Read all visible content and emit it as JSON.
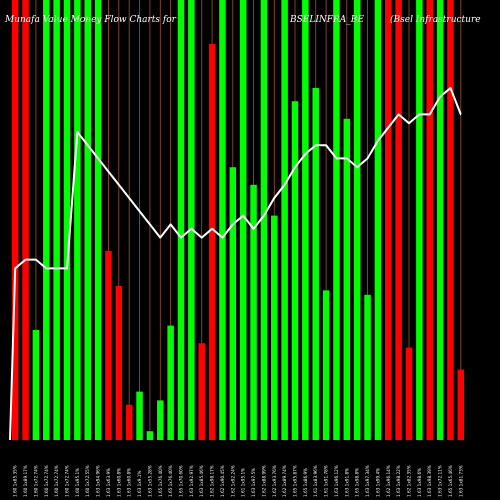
{
  "chart_data": {
    "type": "bar",
    "title_left": "Munafa Value Money Flow Charts for",
    "title_mid": "BSELINFRA_BE",
    "title_right": "(Bsel Infrastructure",
    "colors": {
      "up": "#00ff00",
      "down": "#ff0000",
      "line": "#ffffff",
      "grid": "#a0522d",
      "background": "#000000"
    },
    "ylim": [
      0,
      100
    ],
    "categories": [
      "1.60 1x85.35%",
      "1.60 1x89.17%",
      "1.60 1x72.74%",
      "1.60 1x72.74%",
      "1.60 1x72.74%",
      "1.60 1x72.74%",
      "1.60 1x95.1%",
      "1.60 1x72.55%",
      "1.63 1x94.96%",
      "1.63 1x63.9%",
      "1.63 1x60.8%",
      "1.63 1x60.8%",
      "1.63 1x9.1%",
      "1.63 1x55.28%",
      "1.65 1x76.40%",
      "1.65 1x76.40%",
      "1.65 1x70.60%",
      "1.63 1x92.97%",
      "1.63 1x85.46%",
      "1.62 1x98.17%",
      "1.62 1x90.45%",
      "1.62 1x92.24%",
      "1.61 1x95.1%",
      "1.63 1x97.5%",
      "1.62 1x88.99%",
      "1.62 1x93.76%",
      "1.62 1x89.74%",
      "1.65 1x95.87%",
      "1.65 1x86.9%",
      "1.61 1x83.96%",
      "1.61 1x91.78%",
      "1.63 1x96.12%",
      "1.63 1x91.8%",
      "1.65 1x98.8%",
      "1.63 1x97.34%",
      "1.63 1x99.4%",
      "1.62 1x96.14%",
      "1.63 1x98.22%",
      "1.62 1x82.35%",
      "1.63 1x98.6%",
      "1.63 1x98.39%",
      "1.63 1x72.11%",
      "1.65 1x65.46%",
      "1.63 1x81.73%"
    ],
    "series": [
      {
        "values": [
          100,
          100,
          25,
          100,
          100,
          100,
          100,
          100,
          100,
          43,
          35,
          8,
          11,
          2,
          9,
          26,
          100,
          100,
          22,
          90,
          100,
          62,
          100,
          58,
          100,
          51,
          100,
          77,
          100,
          80,
          34,
          100,
          73,
          100,
          33,
          100,
          100,
          100,
          21,
          100,
          100,
          100,
          100,
          16
        ],
        "directions": [
          "down",
          "down",
          "up",
          "up",
          "up",
          "up",
          "up",
          "up",
          "up",
          "down",
          "down",
          "down",
          "up",
          "up",
          "up",
          "up",
          "up",
          "up",
          "down",
          "down",
          "up",
          "up",
          "up",
          "up",
          "up",
          "up",
          "up",
          "up",
          "up",
          "up",
          "up",
          "up",
          "up",
          "up",
          "up",
          "up",
          "down",
          "down",
          "down",
          "up",
          "down",
          "up",
          "down",
          "down"
        ]
      }
    ],
    "line": [
      39,
      41,
      41,
      39,
      39,
      39,
      70,
      67,
      64,
      61,
      58,
      55,
      52,
      49,
      46,
      49,
      46,
      48,
      46,
      48,
      46,
      49,
      51,
      48,
      51,
      55,
      58,
      62,
      65,
      67,
      67,
      64,
      64,
      62,
      64,
      68,
      71,
      74,
      72,
      74,
      74,
      78,
      80,
      74
    ]
  }
}
